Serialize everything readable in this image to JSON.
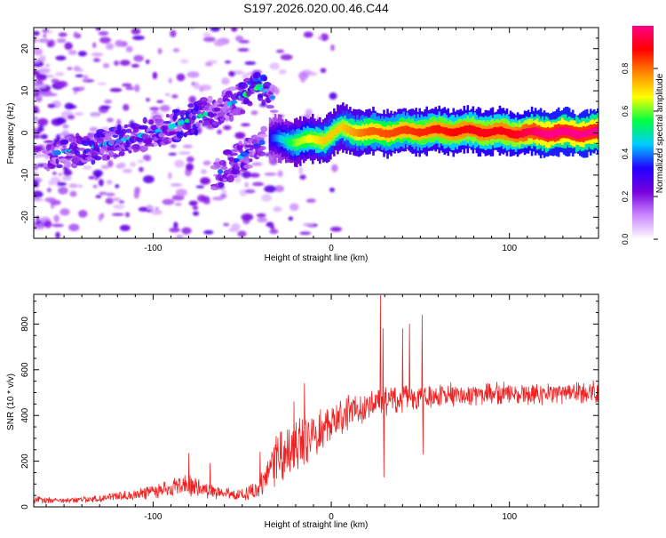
{
  "title": "S197.2026.020.00.46.C44",
  "chart_data": [
    {
      "type": "heatmap",
      "name": "spectrogram",
      "xlabel": "Height of straight line (km)",
      "ylabel": "Frequency (Hz)",
      "xlim": [
        -167,
        150
      ],
      "ylim": [
        -25,
        25
      ],
      "xticks": [
        -100,
        0,
        100
      ],
      "yticks": [
        -20,
        -10,
        0,
        10,
        20
      ],
      "colorbar": {
        "label": "Normalized spectral amplitude",
        "range": [
          0,
          1
        ],
        "ticks": [
          0.0,
          0.2,
          0.4,
          0.6,
          0.8
        ],
        "colors": [
          "#ffffff",
          "#cc88ff",
          "#7700dd",
          "#2200ff",
          "#00ccff",
          "#00ff44",
          "#ffff00",
          "#ff8800",
          "#ff0000",
          "#ff0088"
        ]
      },
      "features": [
        {
          "name": "main-trace",
          "x": [
            -35,
            -20,
            -5,
            5,
            20,
            50,
            80,
            100,
            120,
            150
          ],
          "y": [
            -1.5,
            -2,
            -1.5,
            1,
            0,
            0.5,
            0.5,
            0,
            0,
            0
          ],
          "amplitude": [
            0.3,
            0.6,
            0.7,
            0.7,
            0.8,
            0.85,
            0.9,
            0.9,
            1.0,
            1.0
          ]
        },
        {
          "name": "upper-branch",
          "x": [
            -160,
            -140,
            -120,
            -100,
            -80,
            -60,
            -40,
            -32
          ],
          "y": [
            -5,
            -4,
            -2,
            0,
            3,
            6,
            11,
            8
          ],
          "amplitude": [
            0.3,
            0.4,
            0.4,
            0.35,
            0.45,
            0.3,
            0.5,
            0.3
          ]
        },
        {
          "name": "lower-branch",
          "x": [
            -65,
            -55,
            -45,
            -38
          ],
          "y": [
            -10,
            -7,
            -4,
            -2
          ],
          "amplitude": [
            0.3,
            0.35,
            0.3,
            0.25
          ]
        }
      ]
    },
    {
      "type": "line",
      "name": "snr",
      "xlabel": "Height of straight line (km)",
      "ylabel": "SNR (10 * v/v)",
      "xlim": [
        -167,
        150
      ],
      "ylim": [
        0,
        930
      ],
      "xticks": [
        -100,
        0,
        100
      ],
      "yticks": [
        0,
        200,
        400,
        600,
        800
      ],
      "color": "#ee2222",
      "x": [
        -167,
        -150,
        -130,
        -110,
        -100,
        -90,
        -80,
        -70,
        -60,
        -50,
        -42,
        -38,
        -34,
        -30,
        -26,
        -22,
        -18,
        -14,
        -10,
        -6,
        -2,
        2,
        6,
        10,
        14,
        18,
        22,
        26,
        28,
        30,
        34,
        38,
        42,
        46,
        50,
        54,
        58,
        62,
        66,
        70,
        80,
        90,
        100,
        110,
        120,
        130,
        140,
        150
      ],
      "y": [
        30,
        28,
        35,
        55,
        65,
        80,
        95,
        70,
        60,
        55,
        70,
        110,
        170,
        210,
        240,
        260,
        270,
        300,
        315,
        340,
        360,
        380,
        395,
        415,
        420,
        425,
        440,
        470,
        460,
        455,
        465,
        470,
        475,
        480,
        480,
        485,
        480,
        490,
        495,
        490,
        490,
        495,
        500,
        495,
        495,
        500,
        500,
        505
      ],
      "noise_amplitude": [
        15,
        12,
        15,
        25,
        30,
        40,
        50,
        35,
        25,
        25,
        40,
        70,
        100,
        120,
        130,
        130,
        120,
        120,
        100,
        100,
        100,
        90,
        80,
        80,
        70,
        70,
        70,
        70,
        70,
        70,
        60,
        60,
        60,
        55,
        55,
        55,
        55,
        55,
        55,
        50,
        50,
        50,
        50,
        50,
        50,
        50,
        50,
        50
      ],
      "spikes": [
        {
          "x": -80,
          "y": 235
        },
        {
          "x": -68,
          "y": 190
        },
        {
          "x": -40,
          "y": 240
        },
        {
          "x": -21,
          "y": 460
        },
        {
          "x": -15,
          "y": 540
        },
        {
          "x": 27.5,
          "y": 925
        },
        {
          "x": 29,
          "y": 780
        },
        {
          "x": 29.5,
          "y": 130
        },
        {
          "x": 40,
          "y": 780
        },
        {
          "x": 44,
          "y": 800
        },
        {
          "x": 51,
          "y": 840
        },
        {
          "x": 51.5,
          "y": 230
        }
      ]
    }
  ]
}
